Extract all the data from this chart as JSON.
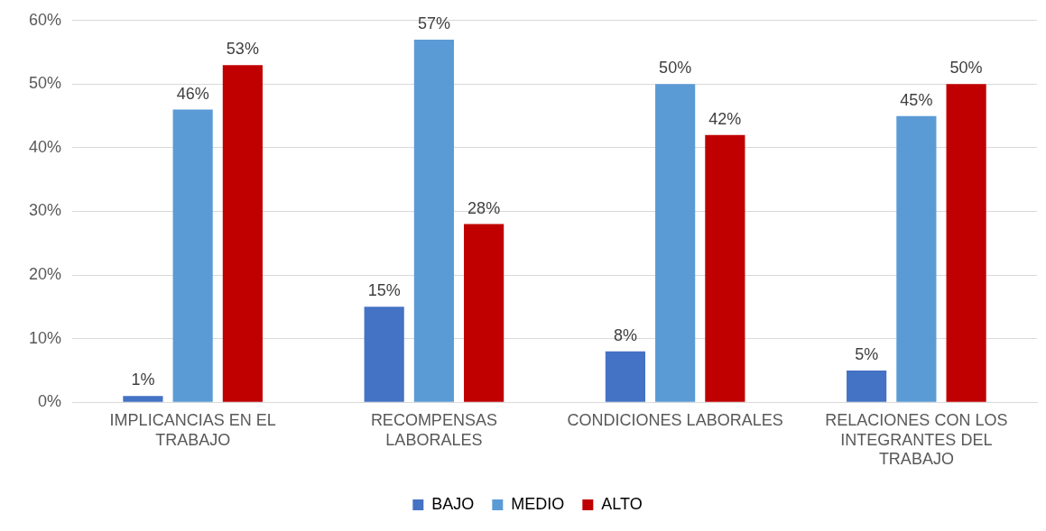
{
  "chart_data": {
    "type": "bar",
    "categories": [
      "IMPLICANCIAS EN EL TRABAJO",
      "RECOMPENSAS LABORALES",
      "CONDICIONES LABORALES",
      "RELACIONES CON LOS INTEGRANTES DEL TRABAJO"
    ],
    "series": [
      {
        "name": "BAJO",
        "color": "#4472c4",
        "values": [
          1,
          15,
          8,
          5
        ],
        "value_labels": [
          "1%",
          "15%",
          "8%",
          "5%"
        ]
      },
      {
        "name": "MEDIO",
        "color": "#5b9bd5",
        "values": [
          46,
          57,
          50,
          45
        ],
        "value_labels": [
          "46%",
          "57%",
          "50%",
          "45%"
        ]
      },
      {
        "name": "ALTO",
        "color": "#c00000",
        "values": [
          53,
          28,
          42,
          50
        ],
        "value_labels": [
          "53%",
          "28%",
          "42%",
          "50%"
        ]
      }
    ],
    "ylim": [
      0,
      60
    ],
    "yticks": [
      {
        "value": 0,
        "label": "0%"
      },
      {
        "value": 10,
        "label": "10%"
      },
      {
        "value": 20,
        "label": "20%"
      },
      {
        "value": 30,
        "label": "30%"
      },
      {
        "value": 40,
        "label": "40%"
      },
      {
        "value": 50,
        "label": "50%"
      },
      {
        "value": 60,
        "label": "60%"
      }
    ],
    "grid": "y",
    "legend": "bottom"
  }
}
